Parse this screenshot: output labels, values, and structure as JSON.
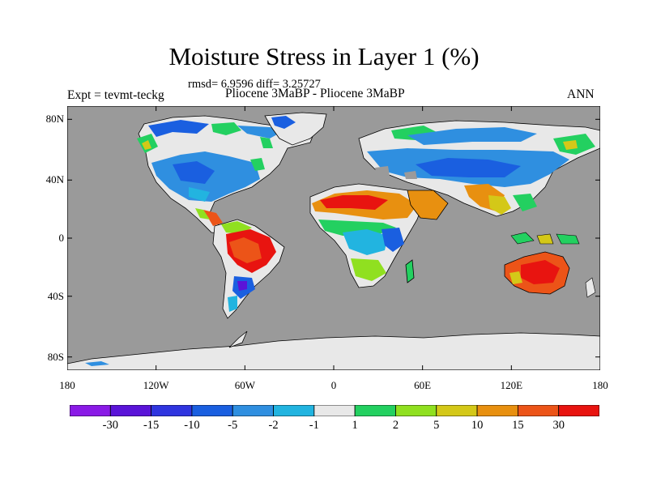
{
  "title": "Moisture Stress in Layer 1 (%)",
  "stats": "rmsd= 6.9596 diff= 3.25727",
  "expt": "Expt = tevmt-teckg",
  "comparison": "Pliocene    3MaBP - Pliocene    3MaBP",
  "period": "ANN",
  "axes": {
    "lat_ticks": [
      "80N",
      "40N",
      "0",
      "40S",
      "80S"
    ],
    "lon_ticks": [
      "180",
      "120W",
      "60W",
      "0",
      "60E",
      "120E",
      "180"
    ]
  },
  "colorbar": {
    "colors": [
      "#8a1ae6",
      "#5a14d8",
      "#2f35df",
      "#1a5fe0",
      "#2f8fe0",
      "#22b4e0",
      "#e8e8e8",
      "#23d060",
      "#90e020",
      "#d4c818",
      "#e89010",
      "#ec5418",
      "#e81410"
    ],
    "labels": [
      "-30",
      "-15",
      "-10",
      "-5",
      "-2",
      "-1",
      "1",
      "2",
      "5",
      "10",
      "15",
      "30"
    ]
  },
  "colors": {
    "ocean": "#9a9a9a",
    "neutral": "#e8e8e8"
  }
}
